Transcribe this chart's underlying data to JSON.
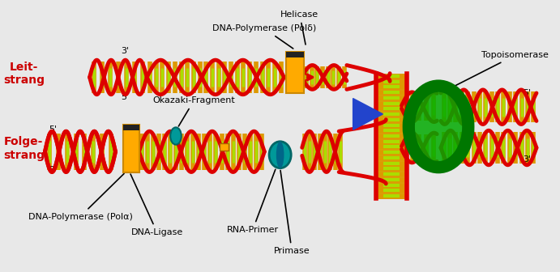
{
  "labels": {
    "primase": "Primase",
    "rna_primer": "RNA-Primer",
    "dna_ligase": "DNA-Ligase",
    "dna_pol_alpha": "DNA-Polymerase (Polα)",
    "okazaki": "Okazaki-Fragment",
    "dna_pol_delta": "DNA-Polymerase (Polδ)",
    "helicase": "Helicase",
    "topoisomerase": "Topoisomerase",
    "folge_strang": "Folge-\nstrang",
    "leit_strang": "Leit-\nstrang"
  },
  "colors": {
    "dna_strand": "#dd0000",
    "base_outer": "#dd9900",
    "base_inner": "#aadd00",
    "pol_box": "#ffaa00",
    "pol_box_edge": "#cc8800",
    "pol_box_top": "#222222",
    "rna_ellipse": "#009999",
    "rna_ellipse_edge": "#006666",
    "topo_ring": "#007700",
    "topo_fill": "#00aa00",
    "blue_arrow": "#2244cc",
    "folge_color": "#cc0000",
    "leit_color": "#cc0000",
    "background": "#e8e8e8",
    "label_line": "#000000"
  }
}
